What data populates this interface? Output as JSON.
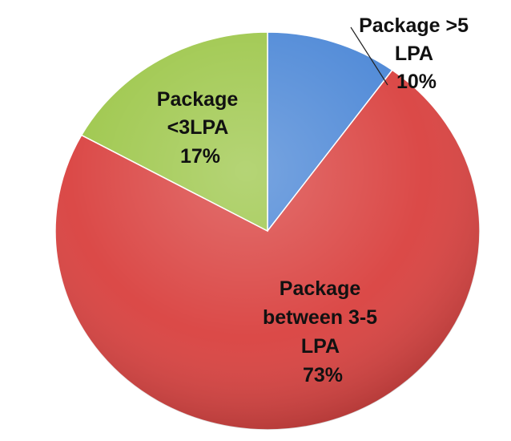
{
  "chart_data": {
    "type": "pie",
    "title": "",
    "slices": [
      {
        "label_lines": [
          "Package >5",
          "LPA"
        ],
        "pct_label": "10%",
        "value": 10,
        "color": "#4A86D6"
      },
      {
        "label_lines": [
          "Package",
          "between 3-5",
          "LPA"
        ],
        "pct_label": "73%",
        "value": 73,
        "color": "#D9403E"
      },
      {
        "label_lines": [
          "Package",
          "<3LPA"
        ],
        "pct_label": "17%",
        "value": 17,
        "color": "#9CC648"
      }
    ],
    "legend": "none",
    "start_angle": "12 o'clock, clockwise"
  }
}
